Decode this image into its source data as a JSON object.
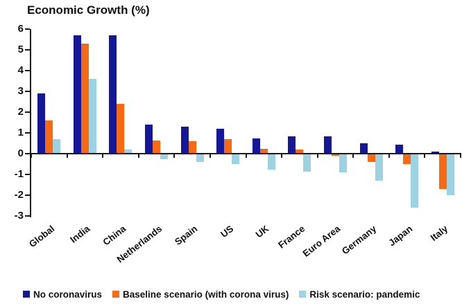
{
  "chart_data": {
    "type": "bar",
    "title": "Economic Growth (%)",
    "categories": [
      "Global",
      "India",
      "China",
      "Netherlands",
      "Spain",
      "US",
      "UK",
      "France",
      "Euro Area",
      "Germany",
      "Japan",
      "Italy"
    ],
    "series": [
      {
        "name": "No coronavirus",
        "color": "#161699",
        "values": [
          2.9,
          5.7,
          5.7,
          1.4,
          1.3,
          1.2,
          0.75,
          0.85,
          0.85,
          0.5,
          0.45,
          0.1
        ]
      },
      {
        "name": "Baseline scenario (with corona virus)",
        "color": "#f56a12",
        "values": [
          1.6,
          5.3,
          2.4,
          0.65,
          0.6,
          0.7,
          0.25,
          0.2,
          -0.1,
          -0.4,
          -0.5,
          -1.7
        ]
      },
      {
        "name": "Risk scenario: pandemic",
        "color": "#9dd2e2",
        "values": [
          0.7,
          3.6,
          0.2,
          -0.25,
          -0.4,
          -0.5,
          -0.75,
          -0.85,
          -0.9,
          -1.3,
          -2.6,
          -2.0
        ]
      }
    ],
    "ylim": [
      -3,
      6
    ],
    "ytick_step": 1,
    "ytick_labels": [
      "6",
      "5",
      "4",
      "3",
      "2",
      "1",
      "0",
      "-1",
      "-2",
      "-3"
    ],
    "grid": false,
    "legend_position": "bottom",
    "axis_color": "#1a1a1a",
    "text_color": "#111111"
  }
}
